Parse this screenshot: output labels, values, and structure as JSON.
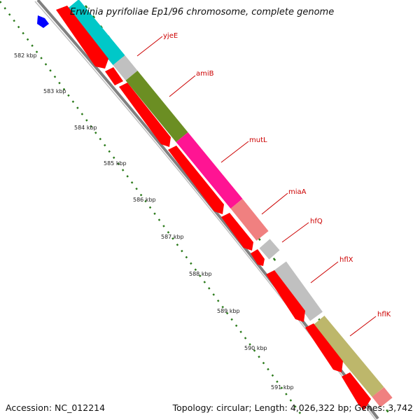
{
  "title": {
    "organism": "Erwinia pyrifoliae",
    "rest": " Ep1/96 chromosome, complete genome"
  },
  "footer": {
    "accession": "Accession: NC_012214",
    "summary": "Topology: circular; Length: 4,026,322 bp; Genes: 3,742"
  },
  "ticks": [
    "582 kbp",
    "583 kbp",
    "584 kbp",
    "585 kbp",
    "586 kbp",
    "587 kbp",
    "588 kbp",
    "589 kbp",
    "590 kbp",
    "591 kbp"
  ],
  "genes": [
    "yjeE",
    "amiB",
    "mutL",
    "miaA",
    "hfQ",
    "hflX",
    "hflK"
  ],
  "colors": {
    "label": "#cc0000",
    "cds": "#ff0000",
    "backbone": "#808080",
    "tick": "#2a7a1a",
    "marker": "#0000ff",
    "yjeE": "#00c8c8",
    "amiB": "#6b8e23",
    "mutL": "#ff1493",
    "miaA": "#f08080",
    "hfQ": "#c0c0c0",
    "hflX": "#c0c0c0",
    "hflK": "#bdb76b"
  }
}
